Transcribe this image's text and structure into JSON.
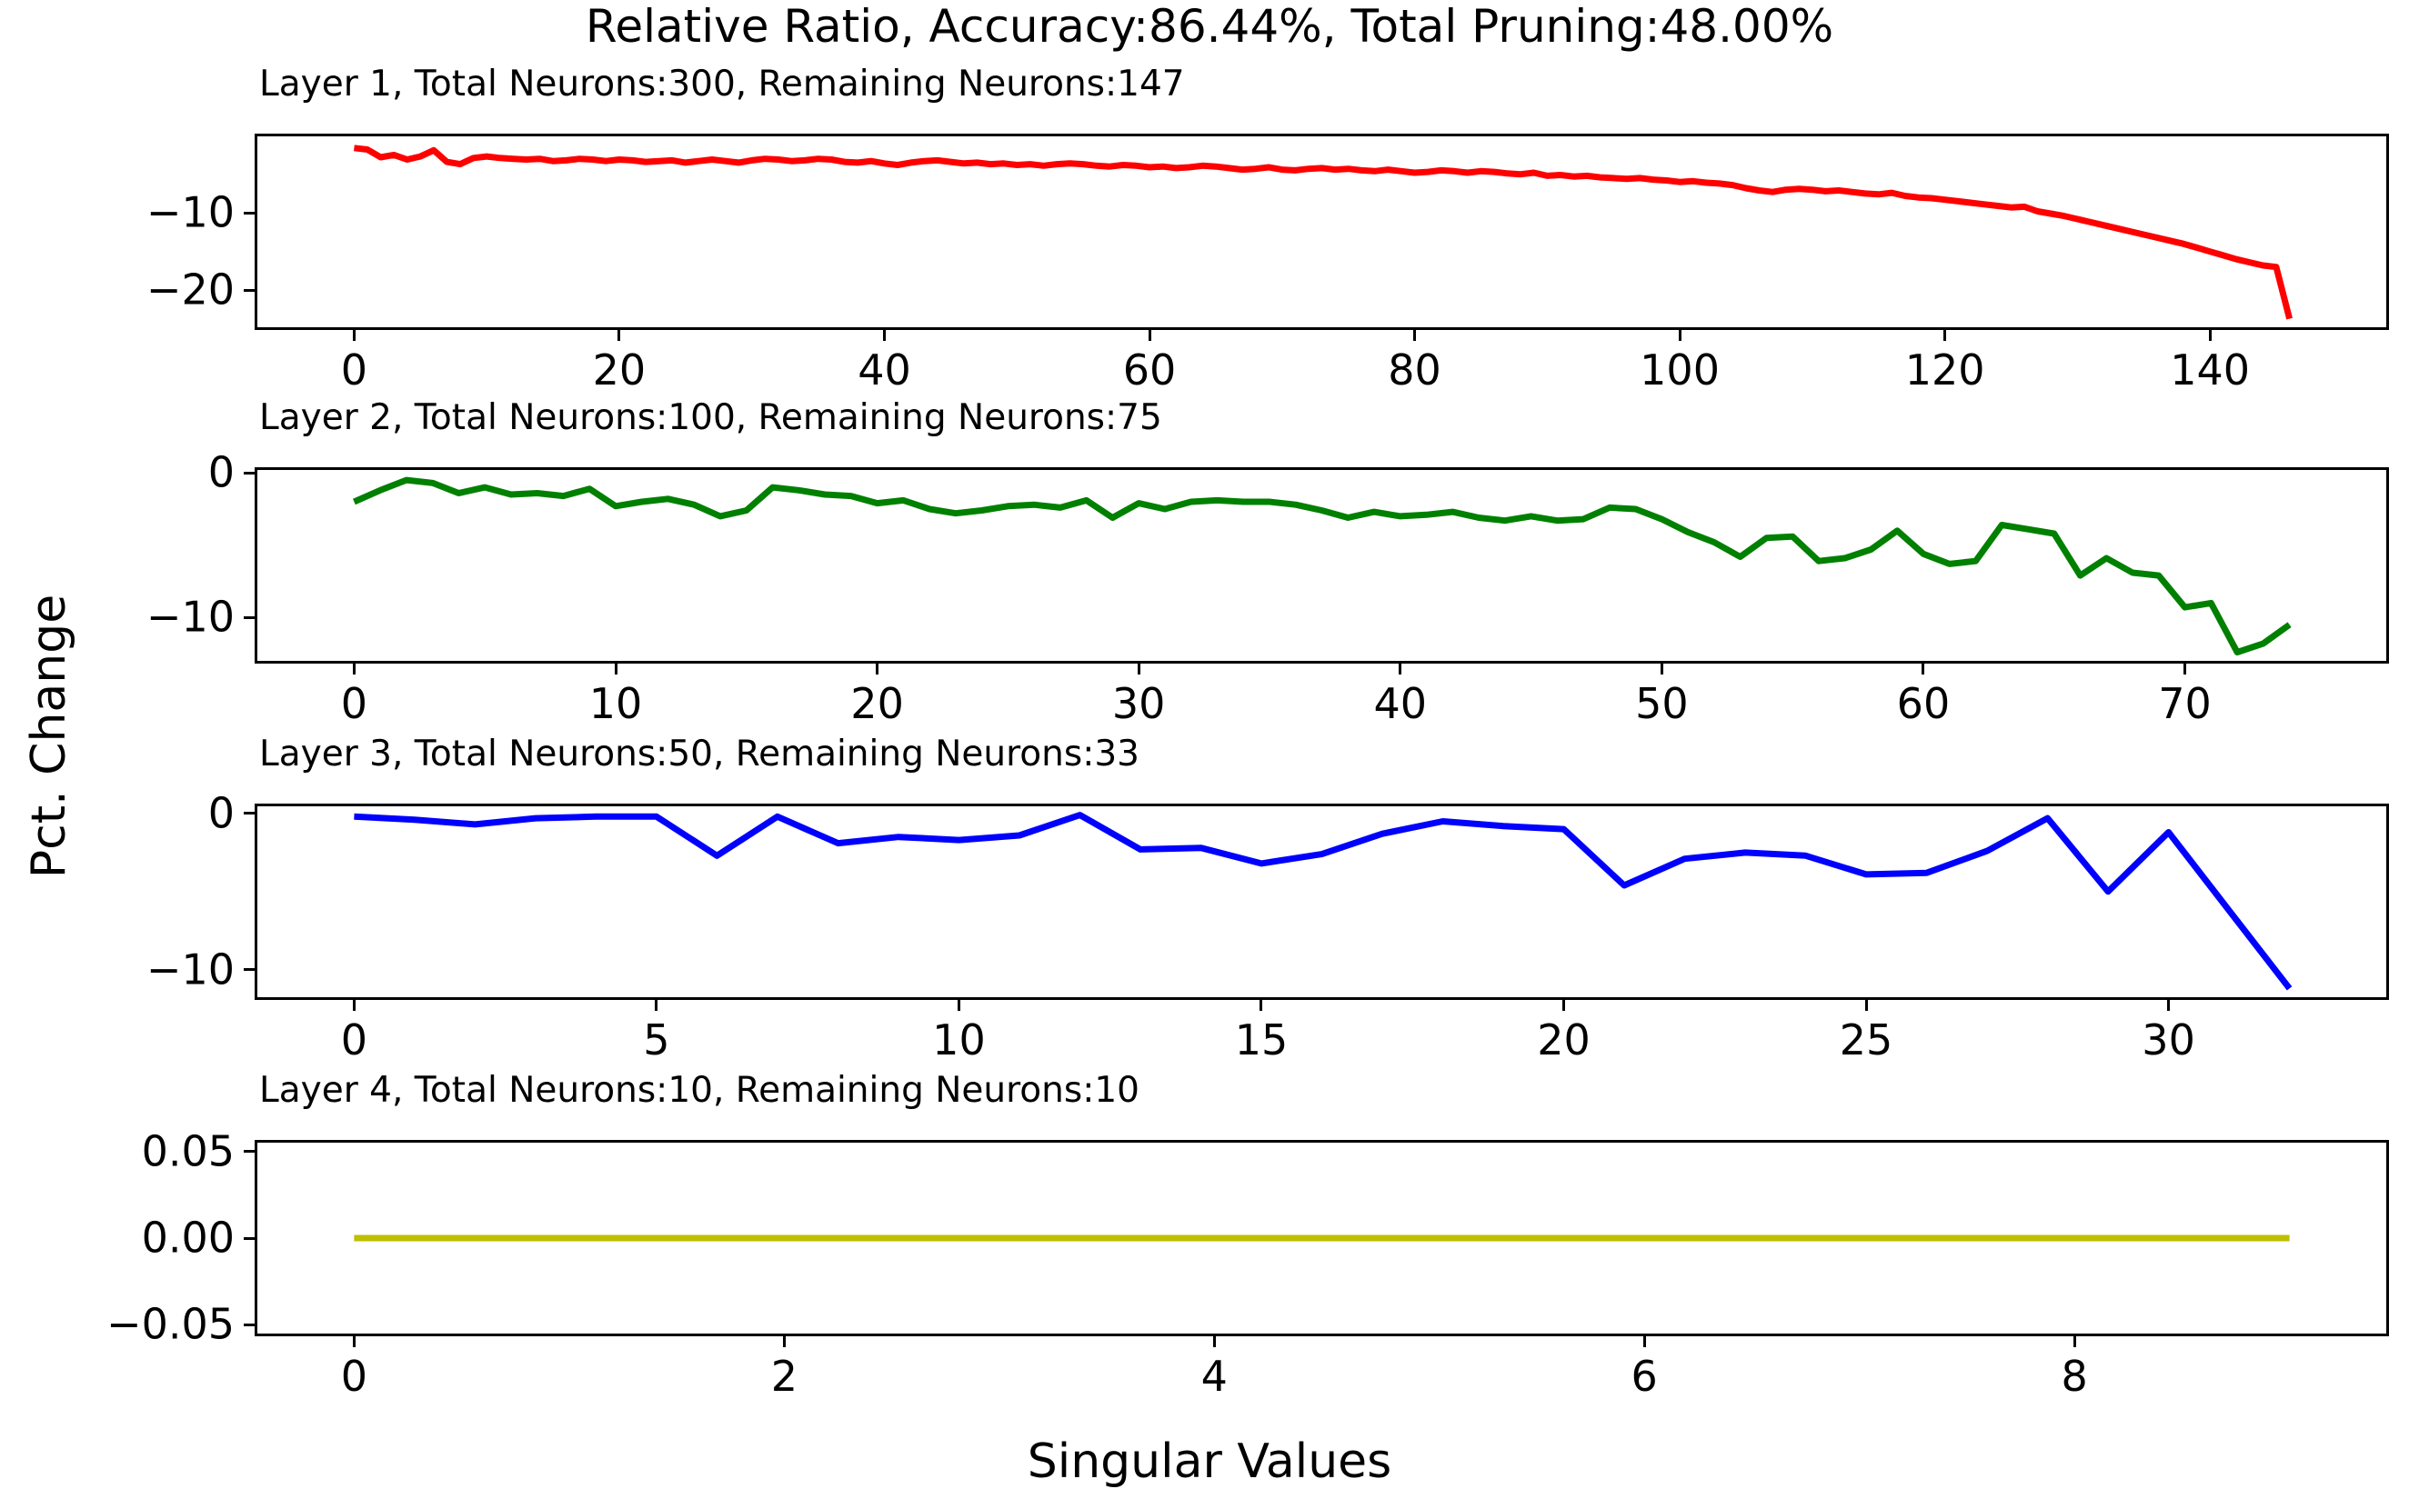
{
  "figure": {
    "suptitle": "Relative Ratio, Accuracy:86.44%, Total Pruning:48.00%",
    "ylabel": "Pct. Change",
    "xlabel": "Singular Values",
    "background": "#ffffff",
    "spine_color": "#000000"
  },
  "chart_data": [
    {
      "type": "line",
      "title": "Layer 1, Total Neurons:300, Remaining Neurons:147",
      "color": "#ff0000",
      "x0": 0,
      "dx": 1,
      "xlim": [
        -7.3,
        153.3
      ],
      "ylim": [
        -24.8,
        -0.1
      ],
      "xticks": [
        0,
        20,
        40,
        60,
        80,
        100,
        120,
        140
      ],
      "xtick_labels": [
        "0",
        "20",
        "40",
        "60",
        "80",
        "100",
        "120",
        "140"
      ],
      "yticks": [
        -10,
        -20
      ],
      "ytick_labels": [
        "−10",
        "−20"
      ],
      "values": [
        -1.6,
        -1.8,
        -2.8,
        -2.5,
        -3.1,
        -2.7,
        -1.9,
        -3.4,
        -3.7,
        -2.9,
        -2.7,
        -2.9,
        -3.0,
        -3.1,
        -3.0,
        -3.3,
        -3.2,
        -3.0,
        -3.1,
        -3.3,
        -3.1,
        -3.2,
        -3.4,
        -3.3,
        -3.2,
        -3.5,
        -3.3,
        -3.1,
        -3.3,
        -3.5,
        -3.2,
        -3.0,
        -3.1,
        -3.3,
        -3.2,
        -3.0,
        -3.1,
        -3.4,
        -3.5,
        -3.3,
        -3.6,
        -3.8,
        -3.5,
        -3.3,
        -3.2,
        -3.4,
        -3.6,
        -3.5,
        -3.7,
        -3.6,
        -3.8,
        -3.7,
        -3.9,
        -3.7,
        -3.6,
        -3.7,
        -3.9,
        -4.0,
        -3.8,
        -3.9,
        -4.1,
        -4.0,
        -4.2,
        -4.1,
        -3.9,
        -4.0,
        -4.2,
        -4.4,
        -4.3,
        -4.1,
        -4.4,
        -4.5,
        -4.3,
        -4.2,
        -4.4,
        -4.3,
        -4.5,
        -4.6,
        -4.4,
        -4.6,
        -4.8,
        -4.7,
        -4.5,
        -4.6,
        -4.8,
        -4.6,
        -4.7,
        -4.9,
        -5.0,
        -4.8,
        -5.2,
        -5.1,
        -5.3,
        -5.2,
        -5.4,
        -5.5,
        -5.6,
        -5.5,
        -5.7,
        -5.8,
        -6.0,
        -5.9,
        -6.1,
        -6.2,
        -6.4,
        -6.8,
        -7.1,
        -7.3,
        -7.0,
        -6.9,
        -7.0,
        -7.2,
        -7.1,
        -7.3,
        -7.5,
        -7.6,
        -7.4,
        -7.8,
        -8.0,
        -8.1,
        -8.3,
        -8.5,
        -8.7,
        -8.9,
        -9.1,
        -9.3,
        -9.2,
        -9.8,
        -10.1,
        -10.4,
        -10.8,
        -11.2,
        -11.6,
        -12.0,
        -12.4,
        -12.8,
        -13.2,
        -13.6,
        -14.0,
        -14.5,
        -15.0,
        -15.5,
        -16.0,
        -16.4,
        -16.8,
        -17.0,
        -23.7
      ]
    },
    {
      "type": "line",
      "title": "Layer 2, Total Neurons:100, Remaining Neurons:75",
      "color": "#008000",
      "x0": 0,
      "dx": 1,
      "xlim": [
        -3.7,
        77.7
      ],
      "ylim": [
        -13.0,
        0.2
      ],
      "xticks": [
        0,
        10,
        20,
        30,
        40,
        50,
        60,
        70
      ],
      "xtick_labels": [
        "0",
        "10",
        "20",
        "30",
        "40",
        "50",
        "60",
        "70"
      ],
      "yticks": [
        0,
        -10
      ],
      "ytick_labels": [
        "0",
        "−10"
      ],
      "values": [
        -2.0,
        -1.2,
        -0.5,
        -0.7,
        -1.4,
        -1.0,
        -1.5,
        -1.4,
        -1.6,
        -1.1,
        -2.3,
        -2.0,
        -1.8,
        -2.2,
        -3.0,
        -2.6,
        -1.0,
        -1.2,
        -1.5,
        -1.6,
        -2.1,
        -1.9,
        -2.5,
        -2.8,
        -2.6,
        -2.3,
        -2.2,
        -2.4,
        -1.9,
        -3.1,
        -2.1,
        -2.5,
        -2.0,
        -1.9,
        -2.0,
        -2.0,
        -2.2,
        -2.6,
        -3.1,
        -2.7,
        -3.0,
        -2.9,
        -2.7,
        -3.1,
        -3.3,
        -3.0,
        -3.3,
        -3.2,
        -2.4,
        -2.5,
        -3.2,
        -4.1,
        -4.8,
        -5.8,
        -4.5,
        -4.4,
        -6.1,
        -5.9,
        -5.3,
        -4.0,
        -5.6,
        -6.3,
        -6.1,
        -3.6,
        -3.9,
        -4.2,
        -7.1,
        -5.9,
        -6.9,
        -7.1,
        -9.3,
        -9.0,
        -12.4,
        -11.8,
        -10.5
      ]
    },
    {
      "type": "line",
      "title": "Layer 3, Total Neurons:50, Remaining Neurons:33",
      "color": "#0000ff",
      "x0": 0,
      "dx": 1,
      "xlim": [
        -1.6,
        33.6
      ],
      "ylim": [
        -11.76,
        0.46
      ],
      "xticks": [
        0,
        5,
        10,
        15,
        20,
        25,
        30
      ],
      "xtick_labels": [
        "0",
        "5",
        "10",
        "15",
        "20",
        "25",
        "30"
      ],
      "yticks": [
        0,
        -10
      ],
      "ytick_labels": [
        "0",
        "−10"
      ],
      "values": [
        -0.2,
        -0.4,
        -0.7,
        -0.3,
        -0.2,
        -0.2,
        -2.7,
        -0.2,
        -1.9,
        -1.5,
        -1.7,
        -1.4,
        -0.1,
        -2.3,
        -2.2,
        -3.2,
        -2.6,
        -1.3,
        -0.5,
        -0.8,
        -1.0,
        -4.6,
        -2.9,
        -2.5,
        -2.7,
        -3.9,
        -3.8,
        -2.4,
        -0.3,
        -5.0,
        -1.2,
        -6.2,
        -11.2
      ]
    },
    {
      "type": "line",
      "title": "Layer 4, Total Neurons:10, Remaining Neurons:10",
      "color": "#bfbf00",
      "x0": 0,
      "dx": 1,
      "xlim": [
        -0.45,
        9.45
      ],
      "ylim": [
        -0.0551,
        0.0551
      ],
      "xticks": [
        0,
        2,
        4,
        6,
        8
      ],
      "xtick_labels": [
        "0",
        "2",
        "4",
        "6",
        "8"
      ],
      "yticks": [
        0.05,
        0.0,
        -0.05
      ],
      "ytick_labels": [
        "0.05",
        "0.00",
        "−0.05"
      ],
      "values": [
        0.0,
        0.0,
        0.0,
        0.0,
        0.0,
        0.0,
        0.0,
        0.0,
        0.0,
        0.0
      ]
    }
  ]
}
